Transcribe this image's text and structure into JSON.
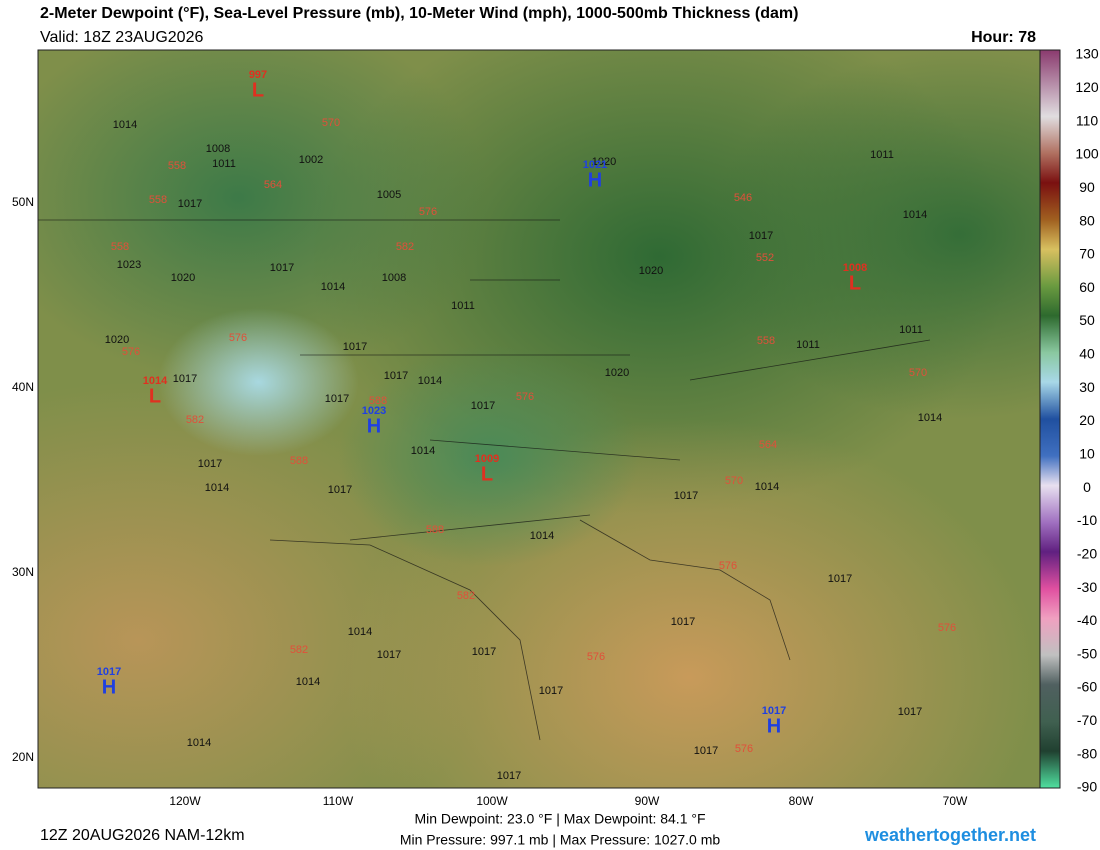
{
  "header": {
    "title": "2-Meter Dewpoint (°F), Sea-Level Pressure (mb), 10-Meter Wind (mph), 1000-500mb Thickness (dam)",
    "valid": "Valid: 18Z 23AUG2026",
    "hour": "Hour: 78"
  },
  "colorbar": {
    "ticks": [
      130,
      120,
      110,
      100,
      90,
      80,
      70,
      60,
      50,
      40,
      30,
      20,
      10,
      0,
      -10,
      -20,
      -30,
      -40,
      -50,
      -60,
      -70,
      -80,
      -90
    ]
  },
  "lat_labels": [
    "50N",
    "40N",
    "30N",
    "20N"
  ],
  "lon_labels": [
    "120W",
    "110W",
    "100W",
    "90W",
    "80W",
    "70W"
  ],
  "map": {
    "isobars": [
      1014,
      1008,
      1011,
      1002,
      1017,
      1005,
      1023,
      1020,
      1017,
      1008,
      1014,
      1011,
      1020,
      1017,
      1017,
      1017,
      1014,
      1017,
      1017,
      1020,
      1014,
      1017,
      1014,
      1017,
      1014,
      1017,
      1014,
      1017,
      1020,
      1011,
      1014,
      1011,
      1011,
      1014,
      1017,
      1017,
      1017,
      1014,
      1017,
      1014,
      1017,
      1014,
      1017,
      1017,
      1017,
      1020
    ],
    "thickness": [
      570,
      564,
      558,
      558,
      558,
      576,
      582,
      576,
      576,
      582,
      588,
      576,
      588,
      588,
      582,
      582,
      576,
      576,
      570,
      564,
      552,
      546,
      558,
      570,
      576,
      576
    ],
    "centers": [
      {
        "letter": "L",
        "value": "997"
      },
      {
        "letter": "H",
        "value": "1021"
      },
      {
        "letter": "L",
        "value": "1008"
      },
      {
        "letter": "L",
        "value": "1014"
      },
      {
        "letter": "H",
        "value": "1023"
      },
      {
        "letter": "L",
        "value": "1009"
      },
      {
        "letter": "H",
        "value": "1017"
      },
      {
        "letter": "H",
        "value": "1017"
      }
    ]
  },
  "footer": {
    "run": "12Z 20AUG2026 NAM-12km",
    "line1": "Min Dewpoint:  23.0 °F | Max Dewpoint:  84.1 °F",
    "line2": "Min Pressure: 997.1 mb | Max Pressure: 1027.0 mb",
    "site": "weathertogether.net"
  }
}
